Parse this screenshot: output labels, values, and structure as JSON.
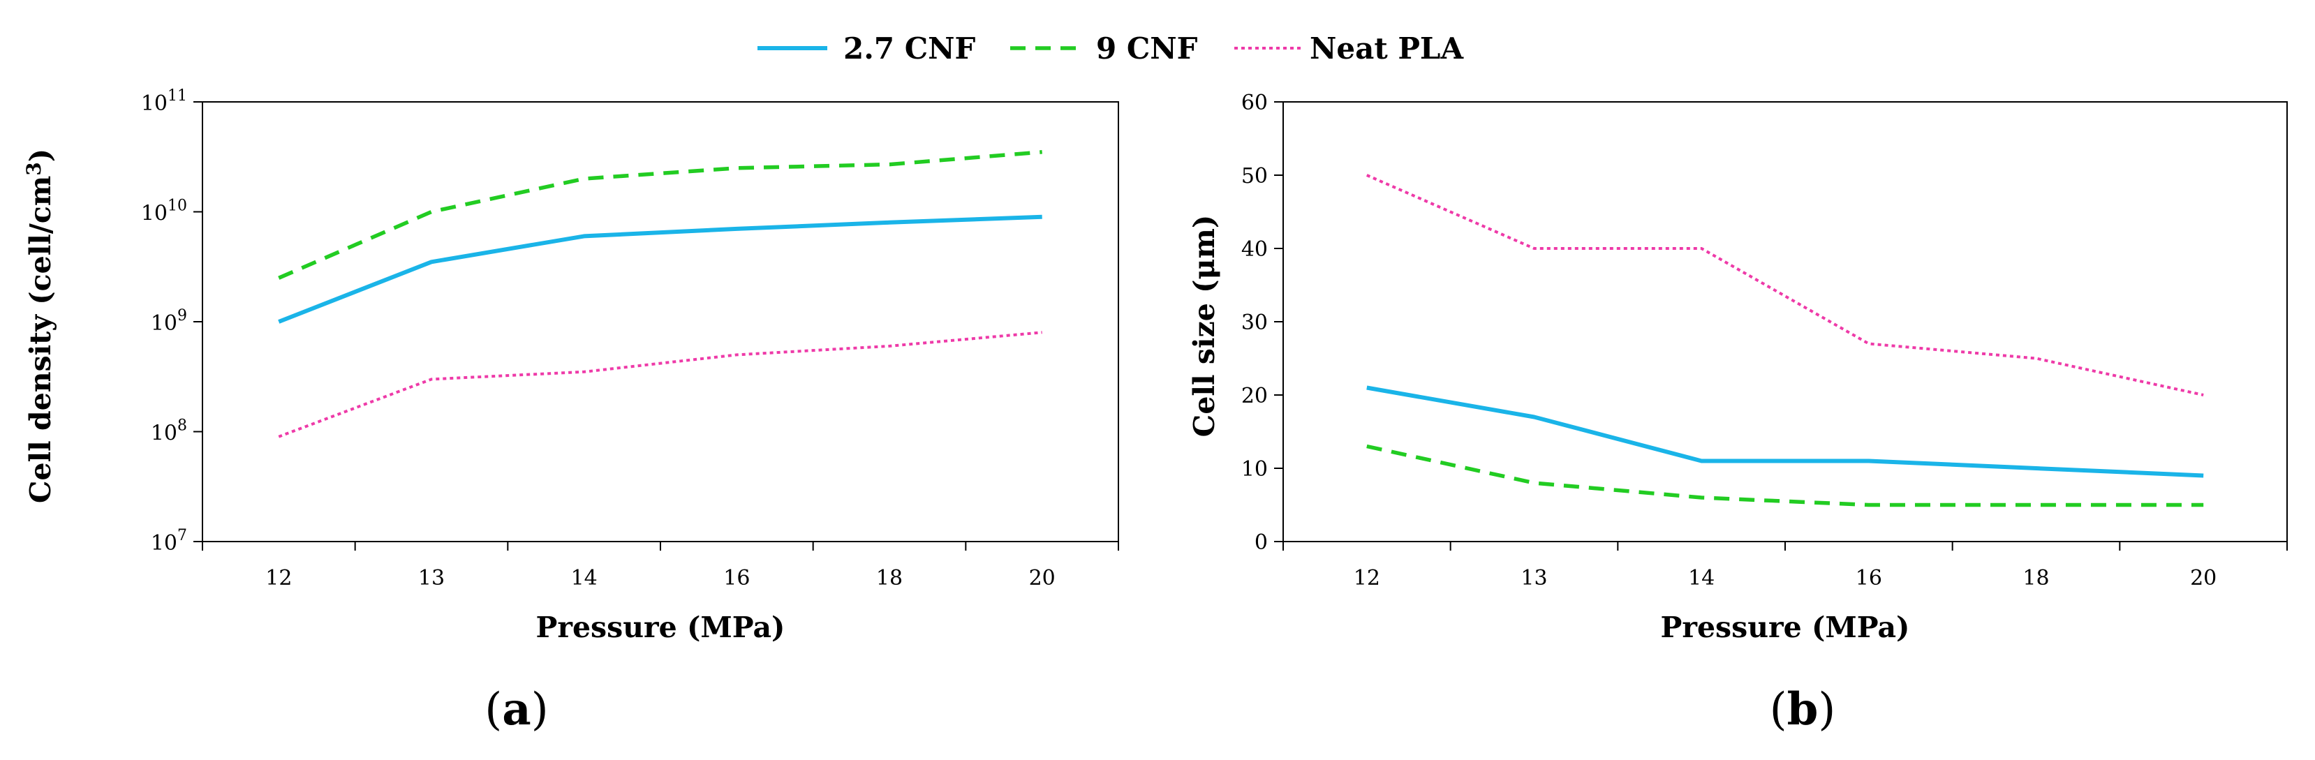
{
  "colors": {
    "2.7 CNF": "#1ab4e8",
    "9 CNF": "#22cc22",
    "Neat PLA": "#ee3aa8"
  },
  "legend": [
    {
      "name": "2.7 CNF",
      "style": "solid"
    },
    {
      "name": "9 CNF",
      "style": "dashed"
    },
    {
      "name": "Neat PLA",
      "style": "dotted"
    }
  ],
  "chart_data": [
    {
      "type": "line",
      "panel_label": "a",
      "categories": [
        "12",
        "13",
        "14",
        "16",
        "18",
        "20"
      ],
      "xlabel": "Pressure (MPa)",
      "ylabel": "Cell density (cell/cm",
      "ylabel_sup": "3",
      "ylabel_close": ")",
      "yscale": "log",
      "ylim": [
        10000000,
        100000000000
      ],
      "y_tick_base": "10",
      "y_tick_exponents": [
        "7",
        "8",
        "9",
        "10",
        "11"
      ],
      "series": [
        {
          "name": "2.7 CNF",
          "style": "solid",
          "values": [
            1000000000,
            3500000000,
            6000000000,
            7000000000,
            8000000000,
            9000000000
          ]
        },
        {
          "name": "9 CNF",
          "style": "dashed",
          "values": [
            2500000000,
            10000000000,
            20000000000,
            25000000000,
            27000000000,
            35000000000
          ]
        },
        {
          "name": "Neat PLA",
          "style": "dotted",
          "values": [
            90000000,
            300000000,
            350000000,
            500000000,
            600000000,
            800000000
          ]
        }
      ]
    },
    {
      "type": "line",
      "panel_label": "b",
      "categories": [
        "12",
        "13",
        "14",
        "16",
        "18",
        "20"
      ],
      "xlabel": "Pressure (MPa)",
      "ylabel": "Cell size (μm)",
      "yscale": "linear",
      "ylim": [
        0,
        60
      ],
      "y_ticks": [
        "0",
        "10",
        "20",
        "30",
        "40",
        "50",
        "60"
      ],
      "series": [
        {
          "name": "2.7 CNF",
          "style": "solid",
          "values": [
            21,
            17,
            11,
            11,
            10,
            9
          ]
        },
        {
          "name": "9 CNF",
          "style": "dashed",
          "values": [
            13,
            8,
            6,
            5,
            5,
            5
          ]
        },
        {
          "name": "Neat PLA",
          "style": "dotted",
          "values": [
            50,
            40,
            40,
            27,
            25,
            20
          ]
        }
      ]
    }
  ]
}
